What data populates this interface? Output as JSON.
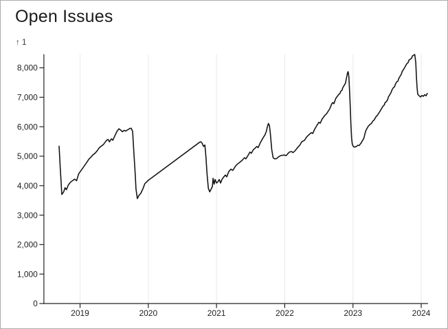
{
  "page": {
    "title": "Open Issues"
  },
  "colors": {
    "background": "#ffffff",
    "card_border": "#ababab",
    "title": "#1b1b1b",
    "line": "#161616",
    "axis": "#222222",
    "tick_label": "#222222",
    "grid": "#e9e9e9"
  },
  "chart_data": {
    "type": "line",
    "title": "Open Issues",
    "y_axis_hint": "↑ 1",
    "xlabel": "",
    "ylabel": "",
    "legend": "none",
    "grid": "vertical-only",
    "xlim": [
      2018.47,
      2024.1
    ],
    "ylim": [
      0,
      8460
    ],
    "x_ticks": [
      2019,
      2020,
      2021,
      2022,
      2023,
      2024
    ],
    "x_tick_labels": [
      "2019",
      "2020",
      "2021",
      "2022",
      "2023",
      "2024"
    ],
    "y_ticks": [
      0,
      1000,
      2000,
      3000,
      4000,
      5000,
      6000,
      7000,
      8000
    ],
    "y_tick_labels": [
      "0",
      "1,000",
      "2,000",
      "3,000",
      "4,000",
      "5,000",
      "6,000",
      "7,000",
      "8,000"
    ],
    "series": [
      {
        "name": "Open Issues",
        "points": [
          [
            2018.693,
            5340
          ],
          [
            2018.71,
            4600
          ],
          [
            2018.733,
            3700
          ],
          [
            2018.76,
            3790
          ],
          [
            2018.78,
            3930
          ],
          [
            2018.8,
            3860
          ],
          [
            2018.83,
            4030
          ],
          [
            2018.86,
            4120
          ],
          [
            2018.89,
            4170
          ],
          [
            2018.92,
            4220
          ],
          [
            2018.95,
            4170
          ],
          [
            2018.98,
            4400
          ],
          [
            2019.01,
            4500
          ],
          [
            2019.05,
            4630
          ],
          [
            2019.09,
            4760
          ],
          [
            2019.13,
            4900
          ],
          [
            2019.16,
            4970
          ],
          [
            2019.19,
            5050
          ],
          [
            2019.22,
            5100
          ],
          [
            2019.25,
            5180
          ],
          [
            2019.28,
            5280
          ],
          [
            2019.31,
            5340
          ],
          [
            2019.34,
            5390
          ],
          [
            2019.36,
            5450
          ],
          [
            2019.39,
            5540
          ],
          [
            2019.41,
            5570
          ],
          [
            2019.43,
            5490
          ],
          [
            2019.46,
            5590
          ],
          [
            2019.48,
            5540
          ],
          [
            2019.51,
            5690
          ],
          [
            2019.54,
            5840
          ],
          [
            2019.57,
            5930
          ],
          [
            2019.6,
            5880
          ],
          [
            2019.62,
            5830
          ],
          [
            2019.65,
            5880
          ],
          [
            2019.67,
            5850
          ],
          [
            2019.7,
            5900
          ],
          [
            2019.73,
            5940
          ],
          [
            2019.75,
            5950
          ],
          [
            2019.77,
            5840
          ],
          [
            2019.79,
            5100
          ],
          [
            2019.81,
            4350
          ],
          [
            2019.82,
            3890
          ],
          [
            2019.84,
            3560
          ],
          [
            2019.86,
            3660
          ],
          [
            2019.89,
            3740
          ],
          [
            2019.92,
            3890
          ],
          [
            2019.95,
            4070
          ],
          [
            2020.0,
            4180
          ],
          [
            2020.75,
            5470
          ],
          [
            2020.77,
            5490
          ],
          [
            2020.79,
            5440
          ],
          [
            2020.81,
            5330
          ],
          [
            2020.83,
            5380
          ],
          [
            2020.845,
            4980
          ],
          [
            2020.86,
            4440
          ],
          [
            2020.88,
            3910
          ],
          [
            2020.9,
            3790
          ],
          [
            2020.92,
            3880
          ],
          [
            2020.94,
            3970
          ],
          [
            2020.95,
            4250
          ],
          [
            2020.965,
            4050
          ],
          [
            2020.98,
            4210
          ],
          [
            2021.0,
            4090
          ],
          [
            2021.02,
            4130
          ],
          [
            2021.04,
            4210
          ],
          [
            2021.06,
            4090
          ],
          [
            2021.08,
            4210
          ],
          [
            2021.1,
            4280
          ],
          [
            2021.13,
            4360
          ],
          [
            2021.15,
            4300
          ],
          [
            2021.18,
            4480
          ],
          [
            2021.21,
            4560
          ],
          [
            2021.24,
            4520
          ],
          [
            2021.28,
            4670
          ],
          [
            2021.31,
            4740
          ],
          [
            2021.34,
            4790
          ],
          [
            2021.38,
            4870
          ],
          [
            2021.41,
            4950
          ],
          [
            2021.43,
            4910
          ],
          [
            2021.46,
            5020
          ],
          [
            2021.49,
            5140
          ],
          [
            2021.51,
            5100
          ],
          [
            2021.54,
            5220
          ],
          [
            2021.56,
            5260
          ],
          [
            2021.59,
            5330
          ],
          [
            2021.61,
            5290
          ],
          [
            2021.64,
            5450
          ],
          [
            2021.66,
            5530
          ],
          [
            2021.69,
            5650
          ],
          [
            2021.71,
            5720
          ],
          [
            2021.73,
            5840
          ],
          [
            2021.745,
            6000
          ],
          [
            2021.76,
            6110
          ],
          [
            2021.775,
            6040
          ],
          [
            2021.79,
            5760
          ],
          [
            2021.81,
            5220
          ],
          [
            2021.83,
            4950
          ],
          [
            2021.85,
            4910
          ],
          [
            2021.88,
            4920
          ],
          [
            2021.91,
            4980
          ],
          [
            2021.94,
            5020
          ],
          [
            2021.99,
            5040
          ],
          [
            2022.02,
            5020
          ],
          [
            2022.05,
            5100
          ],
          [
            2022.07,
            5140
          ],
          [
            2022.1,
            5160
          ],
          [
            2022.12,
            5120
          ],
          [
            2022.15,
            5180
          ],
          [
            2022.19,
            5300
          ],
          [
            2022.22,
            5370
          ],
          [
            2022.25,
            5490
          ],
          [
            2022.29,
            5540
          ],
          [
            2022.32,
            5650
          ],
          [
            2022.35,
            5720
          ],
          [
            2022.39,
            5800
          ],
          [
            2022.41,
            5770
          ],
          [
            2022.44,
            5920
          ],
          [
            2022.47,
            6040
          ],
          [
            2022.5,
            6150
          ],
          [
            2022.52,
            6120
          ],
          [
            2022.55,
            6270
          ],
          [
            2022.59,
            6390
          ],
          [
            2022.61,
            6430
          ],
          [
            2022.64,
            6540
          ],
          [
            2022.66,
            6610
          ],
          [
            2022.69,
            6780
          ],
          [
            2022.705,
            6820
          ],
          [
            2022.72,
            6780
          ],
          [
            2022.75,
            6970
          ],
          [
            2022.79,
            7090
          ],
          [
            2022.81,
            7130
          ],
          [
            2022.82,
            7200
          ],
          [
            2022.84,
            7240
          ],
          [
            2022.85,
            7320
          ],
          [
            2022.87,
            7400
          ],
          [
            2022.89,
            7480
          ],
          [
            2022.9,
            7600
          ],
          [
            2022.92,
            7830
          ],
          [
            2022.93,
            7870
          ],
          [
            2022.94,
            7710
          ],
          [
            2022.95,
            7240
          ],
          [
            2022.96,
            6700
          ],
          [
            2022.97,
            6080
          ],
          [
            2022.98,
            5610
          ],
          [
            2022.99,
            5410
          ],
          [
            2023.005,
            5330
          ],
          [
            2023.02,
            5310
          ],
          [
            2023.05,
            5330
          ],
          [
            2023.07,
            5370
          ],
          [
            2023.09,
            5360
          ],
          [
            2023.12,
            5450
          ],
          [
            2023.14,
            5530
          ],
          [
            2023.16,
            5610
          ],
          [
            2023.175,
            5760
          ],
          [
            2023.19,
            5880
          ],
          [
            2023.21,
            5960
          ],
          [
            2023.22,
            6000
          ],
          [
            2023.25,
            6080
          ],
          [
            2023.27,
            6110
          ],
          [
            2023.29,
            6190
          ],
          [
            2023.31,
            6230
          ],
          [
            2023.34,
            6350
          ],
          [
            2023.36,
            6390
          ],
          [
            2023.37,
            6430
          ],
          [
            2023.39,
            6500
          ],
          [
            2023.42,
            6620
          ],
          [
            2023.44,
            6700
          ],
          [
            2023.46,
            6740
          ],
          [
            2023.47,
            6820
          ],
          [
            2023.49,
            6850
          ],
          [
            2023.51,
            6930
          ],
          [
            2023.52,
            7010
          ],
          [
            2023.54,
            7090
          ],
          [
            2023.56,
            7170
          ],
          [
            2023.57,
            7240
          ],
          [
            2023.59,
            7320
          ],
          [
            2023.61,
            7360
          ],
          [
            2023.62,
            7440
          ],
          [
            2023.64,
            7520
          ],
          [
            2023.66,
            7550
          ],
          [
            2023.67,
            7630
          ],
          [
            2023.69,
            7710
          ],
          [
            2023.71,
            7790
          ],
          [
            2023.72,
            7870
          ],
          [
            2023.74,
            7940
          ],
          [
            2023.76,
            8020
          ],
          [
            2023.77,
            8060
          ],
          [
            2023.79,
            8140
          ],
          [
            2023.81,
            8180
          ],
          [
            2023.82,
            8260
          ],
          [
            2023.84,
            8290
          ],
          [
            2023.86,
            8330
          ],
          [
            2023.87,
            8400
          ],
          [
            2023.89,
            8430
          ],
          [
            2023.905,
            8450
          ],
          [
            2023.92,
            8180
          ],
          [
            2023.93,
            7710
          ],
          [
            2023.94,
            7320
          ],
          [
            2023.95,
            7100
          ],
          [
            2023.97,
            7050
          ],
          [
            2023.99,
            7010
          ],
          [
            2024.01,
            7060
          ],
          [
            2024.03,
            7030
          ],
          [
            2024.05,
            7090
          ],
          [
            2024.07,
            7050
          ],
          [
            2024.09,
            7130
          ]
        ]
      }
    ]
  }
}
